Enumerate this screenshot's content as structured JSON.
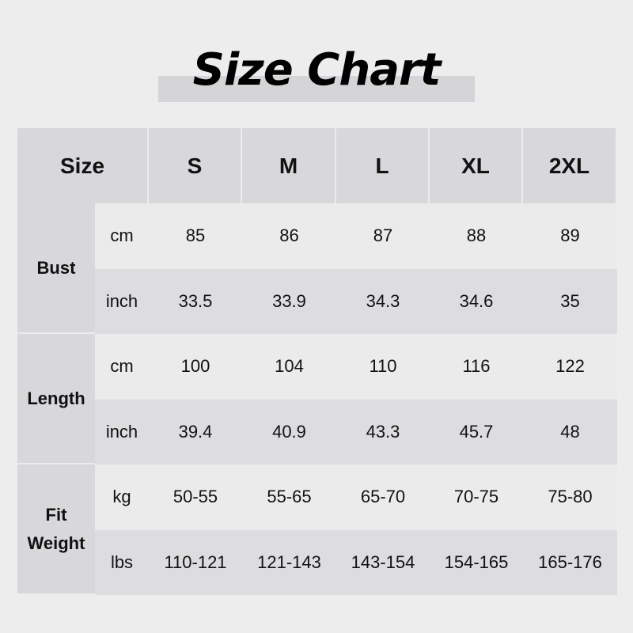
{
  "title": "Size Chart",
  "header": {
    "corner": "Size",
    "sizes": [
      "S",
      "M",
      "L",
      "XL",
      "2XL"
    ]
  },
  "groups": [
    {
      "label": "Bust",
      "rows": [
        {
          "unit": "cm",
          "values": [
            "85",
            "86",
            "87",
            "88",
            "89"
          ]
        },
        {
          "unit": "inch",
          "values": [
            "33.5",
            "33.9",
            "34.3",
            "34.6",
            "35"
          ]
        }
      ]
    },
    {
      "label": "Length",
      "rows": [
        {
          "unit": "cm",
          "values": [
            "100",
            "104",
            "110",
            "116",
            "122"
          ]
        },
        {
          "unit": "inch",
          "values": [
            "39.4",
            "40.9",
            "43.3",
            "45.7",
            "48"
          ]
        }
      ]
    },
    {
      "label": "Fit Weight",
      "rows": [
        {
          "unit": "kg",
          "values": [
            "50-55",
            "55-65",
            "65-70",
            "70-75",
            "75-80"
          ]
        },
        {
          "unit": "lbs",
          "values": [
            "110-121",
            "121-143",
            "143-154",
            "154-165",
            "165-176"
          ]
        }
      ]
    }
  ]
}
